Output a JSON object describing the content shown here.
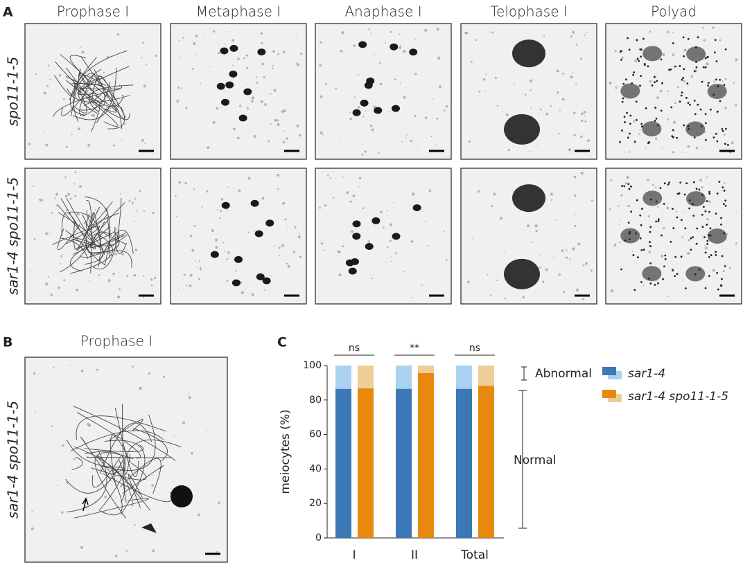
{
  "panel_a": {
    "label": "A",
    "columns": [
      "Prophase I",
      "Metaphase I",
      "Anaphase I",
      "Telophase I",
      "Polyad"
    ],
    "rows": [
      "spo11-1-5",
      "sar1-4 spo11-1-5"
    ]
  },
  "panel_b": {
    "label": "B",
    "title": "Prophase I",
    "row": "sar1-4 spo11-1-5"
  },
  "panel_c": {
    "label": "C"
  },
  "chart_data": {
    "type": "bar",
    "ylabel": "meiocytes (%)",
    "categories": [
      "I",
      "II",
      "Total"
    ],
    "ylim": [
      0,
      100
    ],
    "yticks": [
      0,
      20,
      40,
      60,
      80,
      100
    ],
    "significance": [
      "ns",
      "**",
      "ns"
    ],
    "normal_label": "Normal",
    "abnormal_label": "Abnormal",
    "series": [
      {
        "name": "sar1-4",
        "color": "#3b78b5",
        "light_color": "#a9d1f0",
        "normal": [
          86.5,
          86.5,
          86.5
        ],
        "abnormal": [
          13.5,
          13.5,
          13.5
        ]
      },
      {
        "name": "sar1-4 spo11-1-5",
        "color": "#e8890e",
        "light_color": "#efcc98",
        "normal": [
          86.8,
          95.7,
          88.3
        ],
        "abnormal": [
          13.2,
          4.3,
          11.7
        ]
      }
    ]
  }
}
